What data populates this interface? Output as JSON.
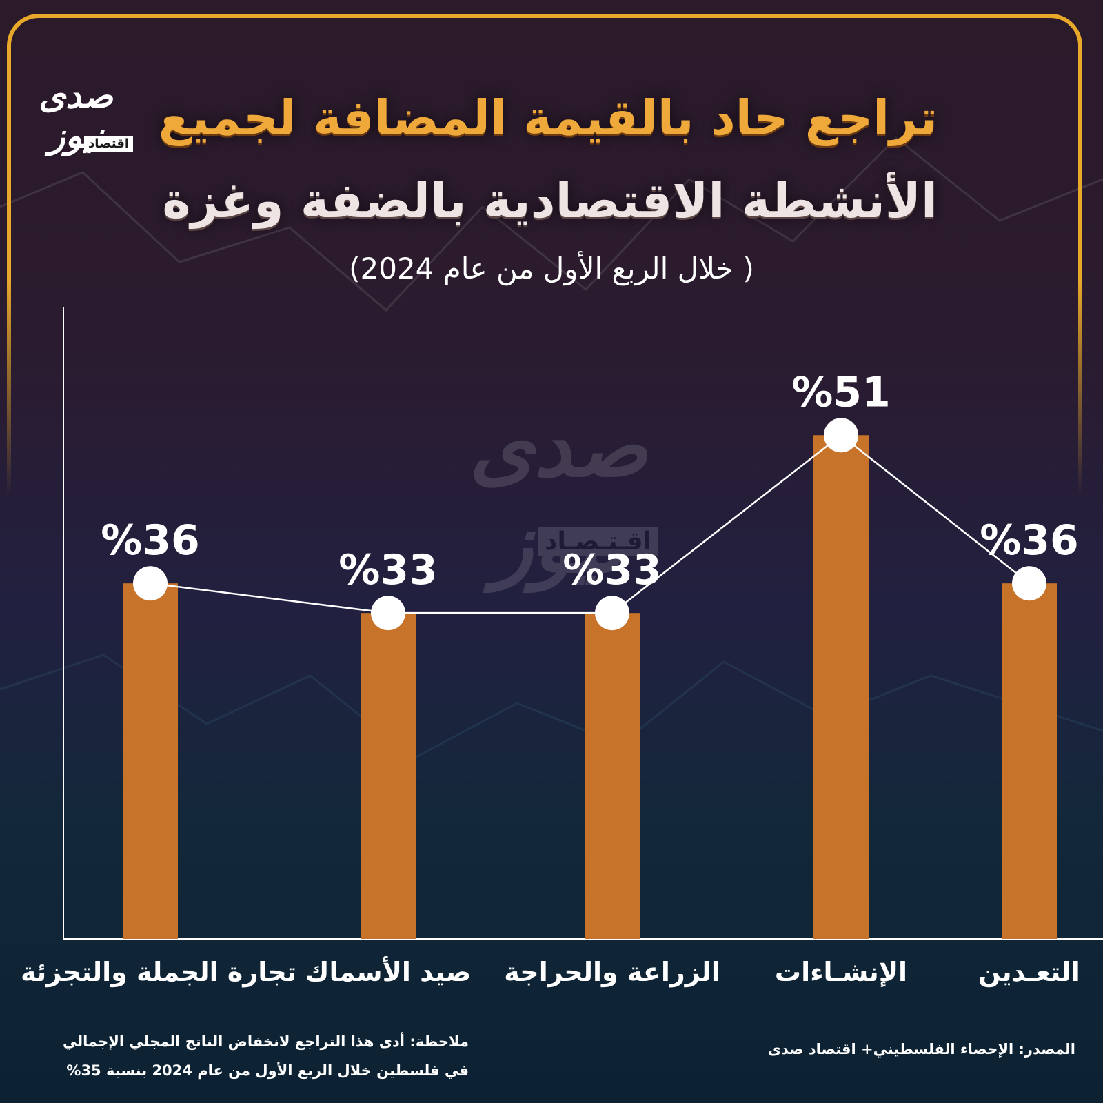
{
  "header": {
    "title_line1": "تراجع حاد بالقيمة المضافة لجميع",
    "title_line2": "الأنشطة الاقتصادية بالضفة وغزة",
    "subtitle": "( خلال الربع الأول من عام 2024)"
  },
  "logo": {
    "word": "صدى نيوز",
    "tag": "اقتصاد"
  },
  "watermark": {
    "word": "صدى نيوز",
    "tag": "اقـتـصـاد"
  },
  "chart_data": {
    "type": "bar",
    "title": "تراجع حاد بالقيمة المضافة لجميع الأنشطة الاقتصادية بالضفة وغزة",
    "subtitle": "( خلال الربع الأول من عام 2024)",
    "categories": [
      "تجارة الجملة والتجزئة",
      "صيد الأسماك",
      "الزراعة والحراجة",
      "الإنشـاءات",
      "التعـدين"
    ],
    "values": [
      36,
      33,
      33,
      51,
      36
    ],
    "value_labels": [
      "%36",
      "%33",
      "%33",
      "%51",
      "%36"
    ],
    "highlight_index": 3,
    "overlay_line": true,
    "ylim": [
      0,
      64
    ],
    "grid": false,
    "xlabel": "",
    "ylabel": ""
  },
  "colors": {
    "bar": "#c8732a",
    "accent_frame": "#e8a92b",
    "highlight_label": "#e8403a",
    "label": "#ffffff",
    "line": "#ffffff"
  },
  "footer": {
    "note_line1": "ملاحظة: أدى هذا التراجع لانخفاض الناتج المجلي الإجمالي",
    "note_line2": "في فلسطين خلال الربع الأول من عام 2024 بنسبة 35%",
    "source": "المصدر: الإحصاء الفلسطيني+ اقتصاد صدى"
  }
}
